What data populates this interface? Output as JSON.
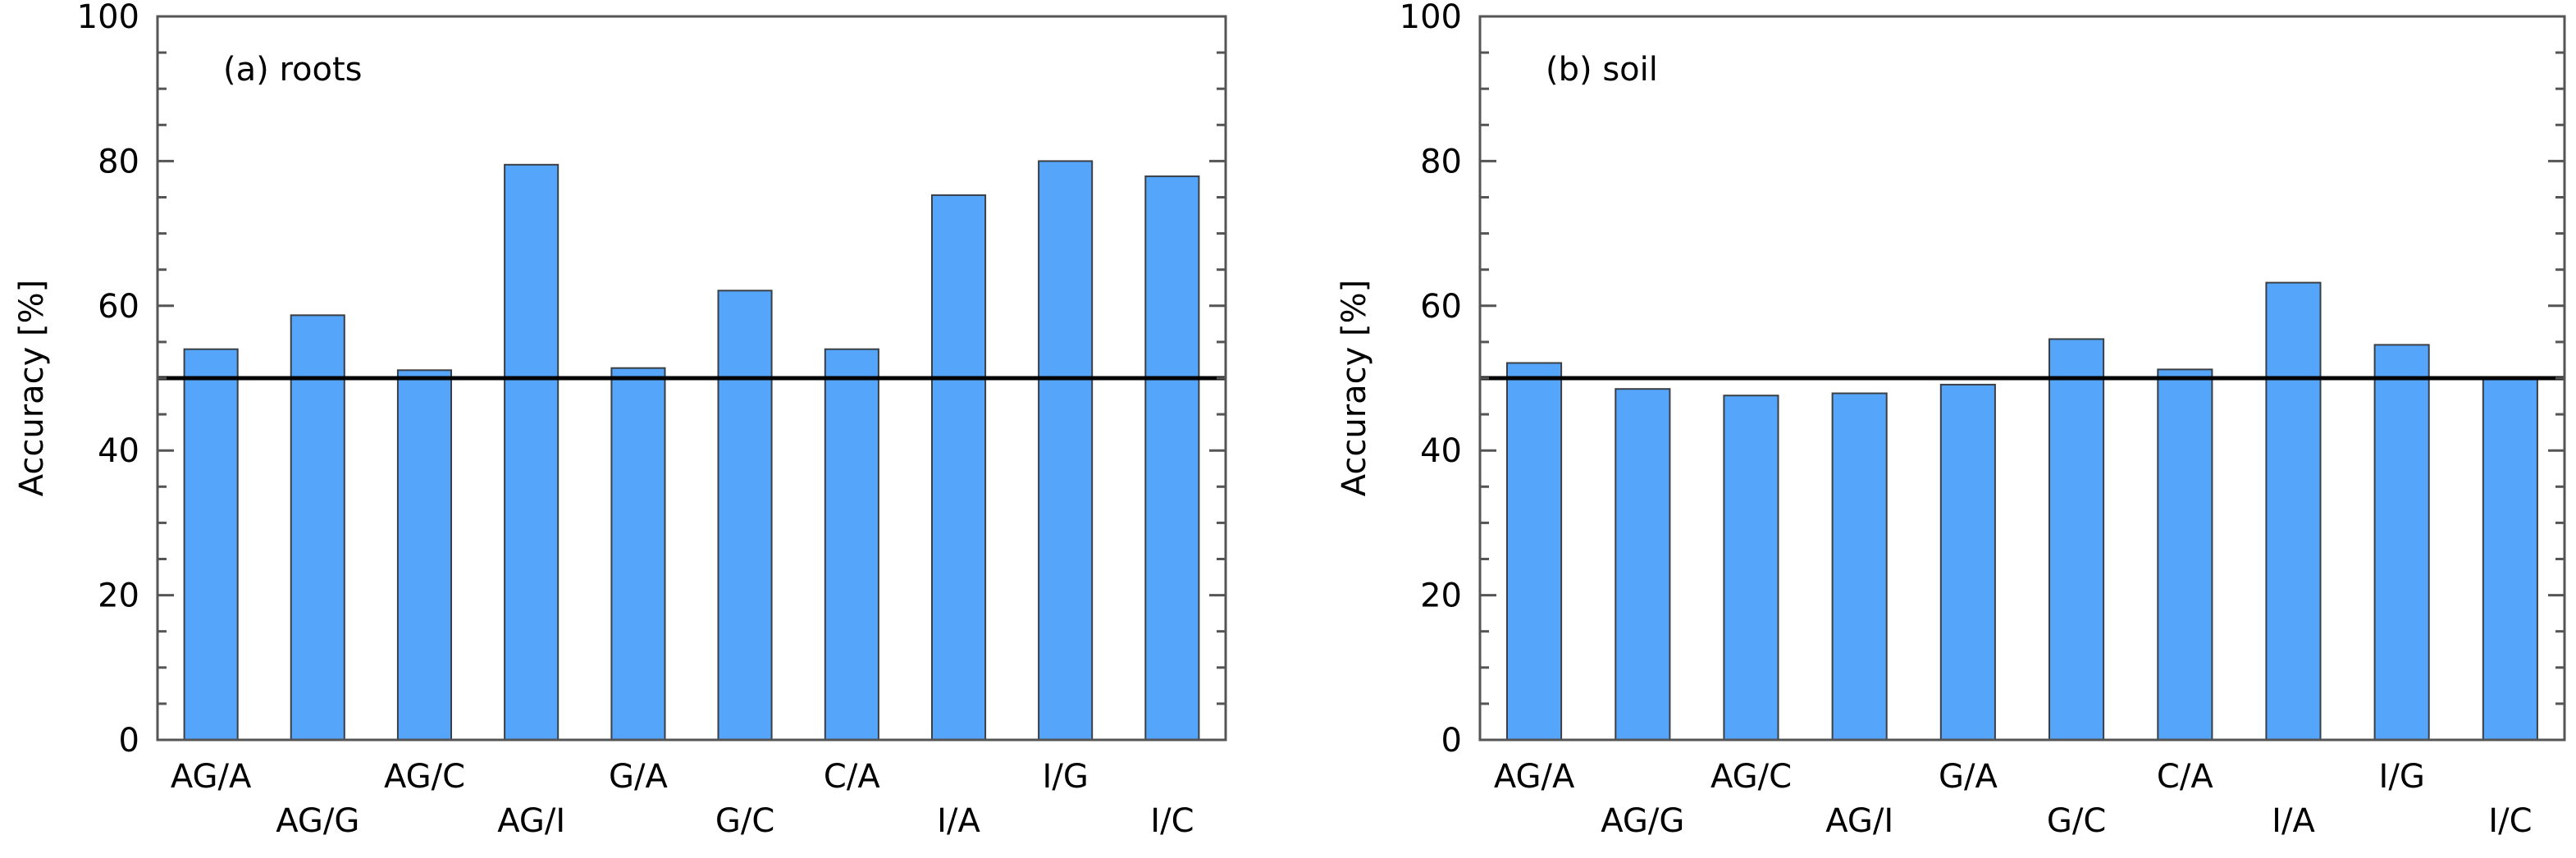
{
  "chart_data": [
    {
      "type": "bar",
      "panel_label": "(a)  roots",
      "ylabel": "Accuracy [%]",
      "ylim": [
        0,
        100
      ],
      "yticks": [
        0,
        20,
        40,
        60,
        80,
        100
      ],
      "yticklabels": [
        "0",
        "20",
        "40",
        "60",
        "80",
        "100"
      ],
      "categories": [
        "AG/A",
        "AG/G",
        "AG/C",
        "AG/I",
        "G/A",
        "G/C",
        "C/A",
        "I/A",
        "I/G",
        "I/C"
      ],
      "values": [
        54,
        58.7,
        51.1,
        79.5,
        51.4,
        62.1,
        54,
        75.3,
        80,
        77.9
      ],
      "reference_line": 50,
      "bar_color": "#55A5FA",
      "reference_color": "#000000"
    },
    {
      "type": "bar",
      "panel_label": "(b)  soil",
      "ylabel": "Accuracy [%]",
      "ylim": [
        0,
        100
      ],
      "yticks": [
        0,
        20,
        40,
        60,
        80,
        100
      ],
      "yticklabels": [
        "0",
        "20",
        "40",
        "60",
        "80",
        "100"
      ],
      "categories": [
        "AG/A",
        "AG/G",
        "AG/C",
        "AG/I",
        "G/A",
        "G/C",
        "C/A",
        "I/A",
        "I/G",
        "I/C"
      ],
      "values": [
        52.1,
        48.5,
        47.6,
        47.9,
        49.1,
        55.4,
        51.2,
        63.2,
        54.6,
        50
      ],
      "reference_line": 50,
      "bar_color": "#55A5FA",
      "reference_color": "#000000"
    }
  ]
}
